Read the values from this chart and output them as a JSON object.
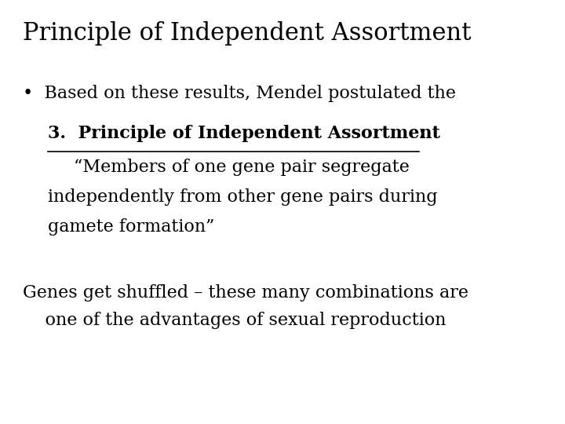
{
  "title": "Principle of Independent Assortment",
  "title_fontsize": 22,
  "background_color": "#ffffff",
  "text_color": "#000000",
  "bullet_line1": "•  Based on these results, Mendel postulated the",
  "bullet_line2_bold": "3.  Principle of Independent Assortment",
  "bullet_line2_colon": ":",
  "quote_line1": "“Members of one gene pair segregate",
  "quote_line2": "independently from other gene pairs during",
  "quote_line3": "gamete formation”",
  "bottom_line1": "Genes get shuffled – these many combinations are",
  "bottom_line2": "    one of the advantages of sexual reproduction",
  "body_fontsize": 16,
  "bold_fontsize": 16
}
